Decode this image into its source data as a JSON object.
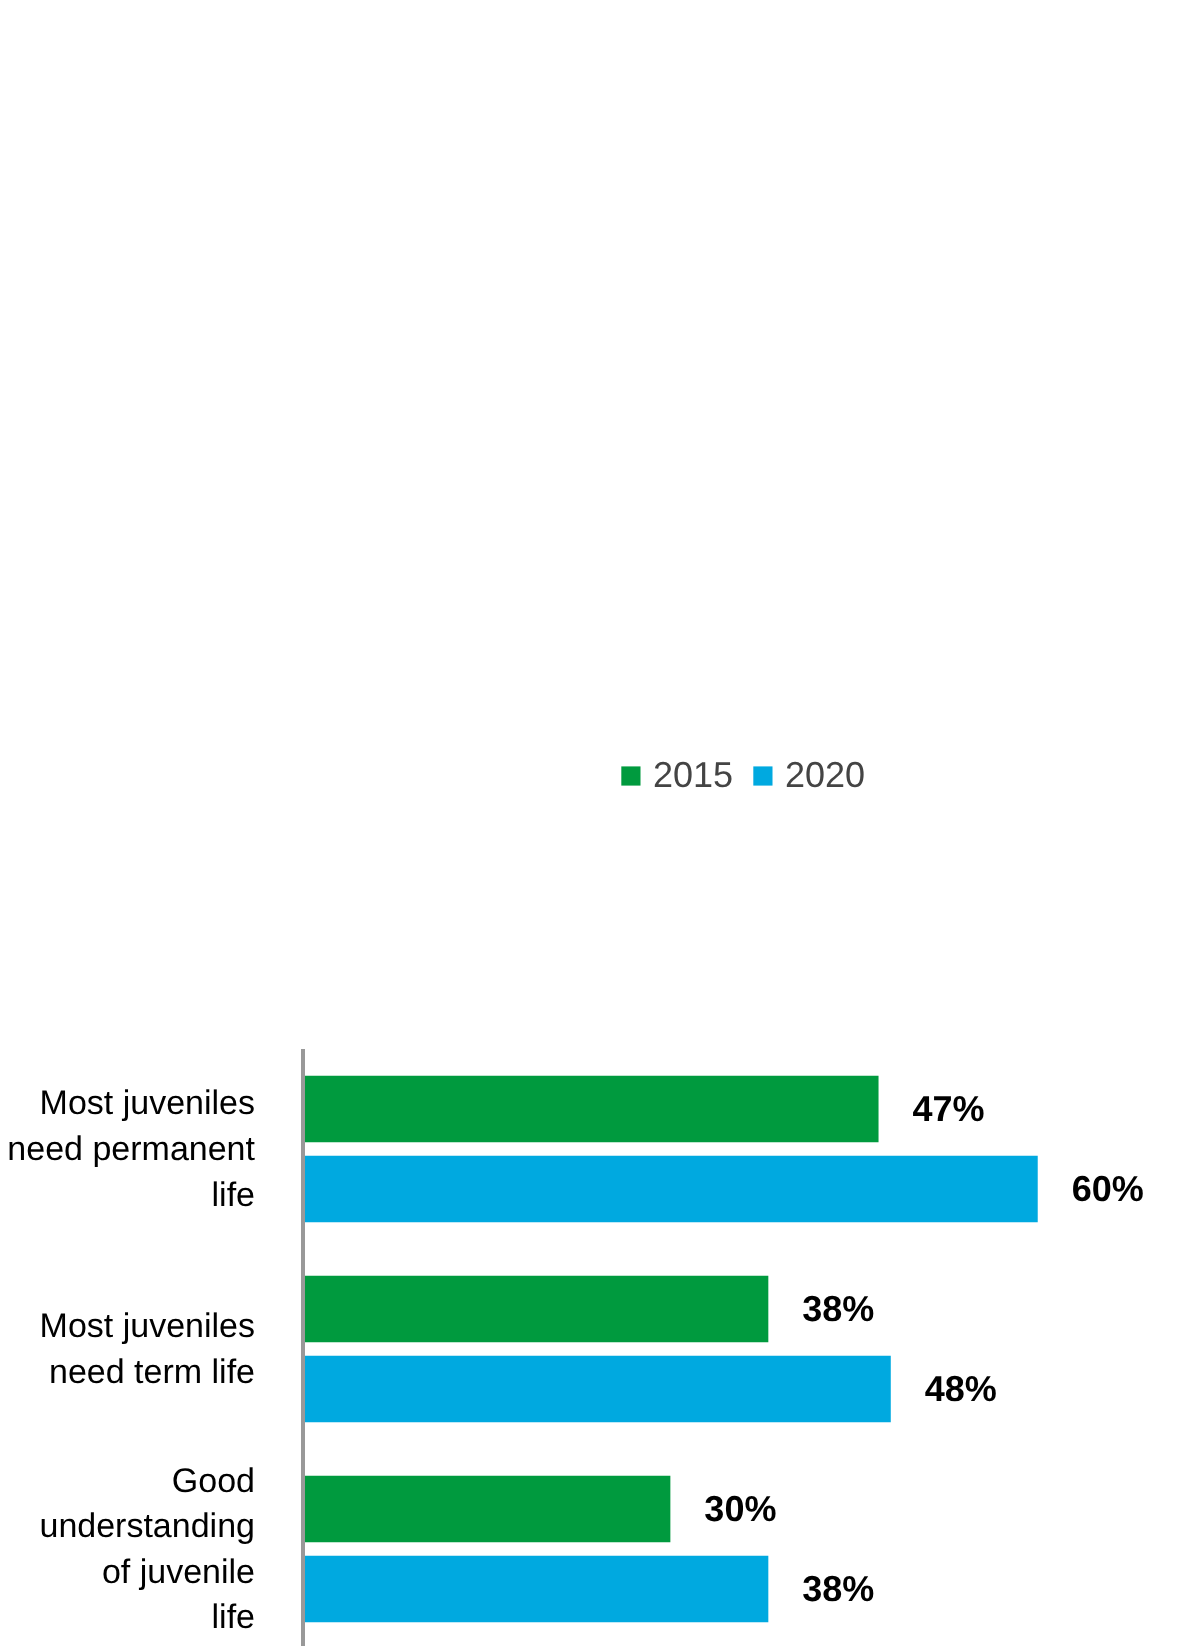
{
  "chart_data": {
    "type": "bar",
    "orientation": "horizontal",
    "categories": [
      "Most juveniles need permanent life",
      "Most juveniles need term life",
      "Good understanding of juvenile life"
    ],
    "series": [
      {
        "name": "2015",
        "color": "#009a3e",
        "values": [
          47,
          38,
          30
        ],
        "value_labels": [
          "47%",
          "38%",
          "30%"
        ]
      },
      {
        "name": "2020",
        "color": "#00a9e0",
        "values": [
          60,
          48,
          38
        ],
        "value_labels": [
          "60%",
          "48%",
          "38%"
        ]
      }
    ],
    "legend": "top",
    "grid": false
  }
}
